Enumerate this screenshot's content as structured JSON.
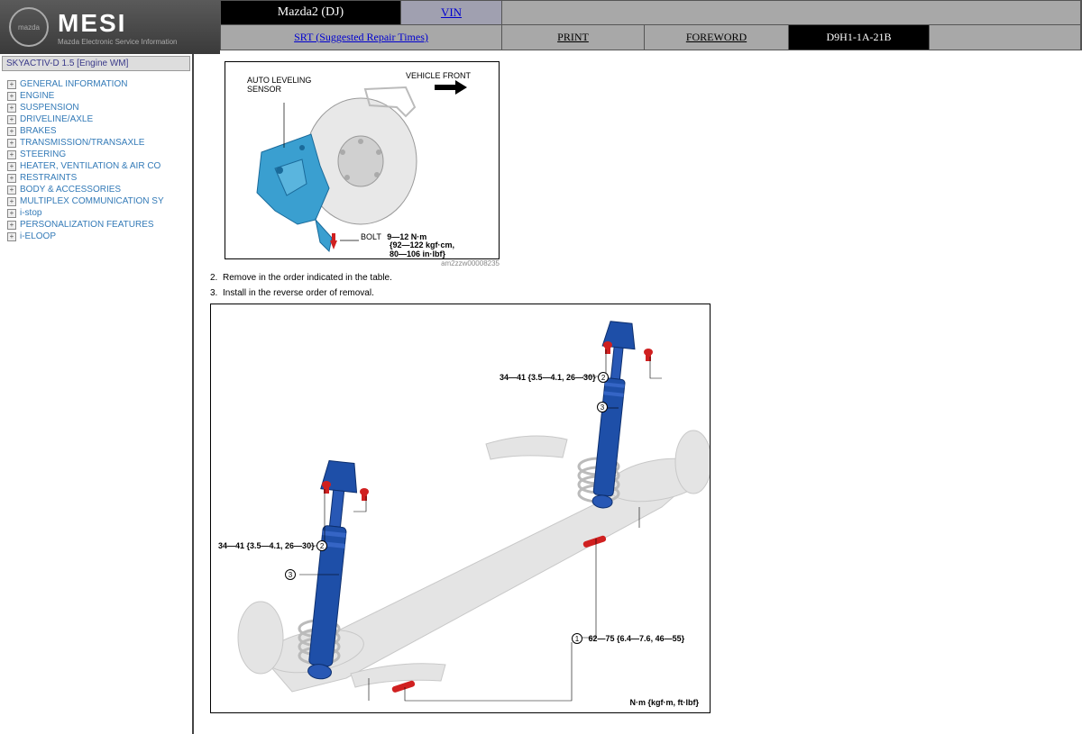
{
  "brand": {
    "logo_text": "mazda",
    "main": "MESI",
    "sub": "Mazda Electronic Service Information"
  },
  "tabs": {
    "model": "Mazda2 (DJ)",
    "vin": "VIN",
    "srt": "SRT (Suggested Repair Times)",
    "print": "PRINT",
    "foreword": "FOREWORD",
    "code": "D9H1-1A-21B"
  },
  "sidebar": {
    "title": "SKYACTIV-D 1.5 [Engine WM]",
    "items": [
      "GENERAL INFORMATION",
      "ENGINE",
      "SUSPENSION",
      "DRIVELINE/AXLE",
      "BRAKES",
      "TRANSMISSION/TRANSAXLE",
      "STEERING",
      "HEATER, VENTILATION & AIR CO",
      "RESTRAINTS",
      "BODY & ACCESSORIES",
      "MULTIPLEX COMMUNICATION SY",
      "i-stop",
      "PERSONALIZATION FEATURES",
      "i-ELOOP"
    ]
  },
  "figure1": {
    "label_sensor_1": "AUTO LEVELING",
    "label_sensor_2": "SENSOR",
    "label_front": "VEHICLE FRONT",
    "label_bolt": "BOLT",
    "torque_1": "9—12 N·m",
    "torque_2": "{92—122 kgf·cm,",
    "torque_3": "80—106 in·lbf}",
    "code": "am2zzw00008235",
    "colors": {
      "bracket": "#2b8fbf",
      "rotor": "#d8d8d8",
      "bolt": "#d02020"
    }
  },
  "steps": {
    "s2": "Remove in the order indicated in the table.",
    "s3": "Install in the reverse order of removal."
  },
  "figure2": {
    "torque_a": "34—41 {3.5—4.1, 26—30}",
    "torque_b": "62—75 {6.4—7.6, 46—55}",
    "callout_1": "1",
    "callout_2": "2",
    "callout_3": "3",
    "unit_note": "N·m {kgf·m, ft·lbf}",
    "colors": {
      "damper": "#1e4fa8",
      "axle": "#d0d0d0",
      "bolt": "#d02020"
    }
  }
}
